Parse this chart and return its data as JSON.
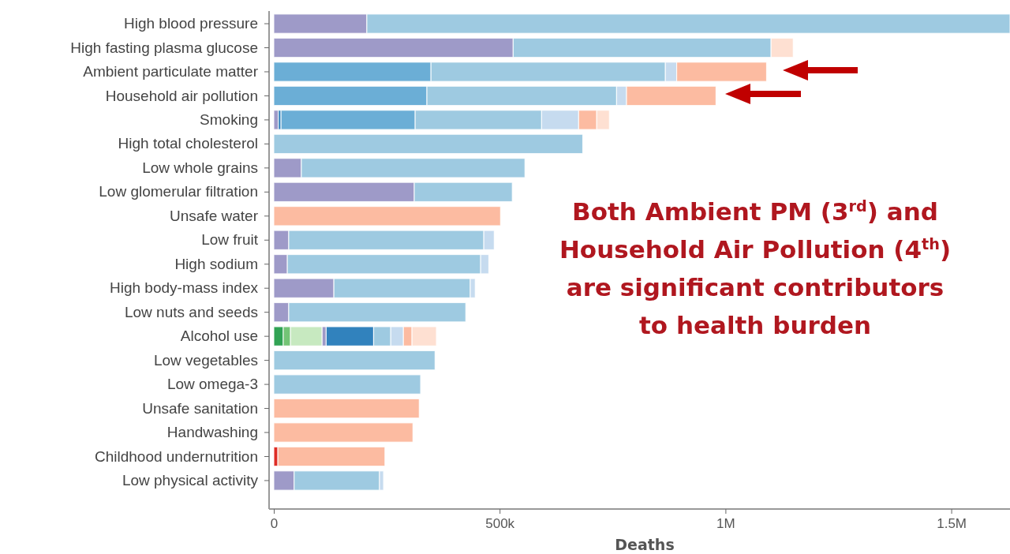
{
  "chart_data": {
    "type": "bar",
    "orientation": "horizontal",
    "stacked": true,
    "xlabel": "Deaths",
    "categories": [
      "High blood pressure",
      "High fasting plasma glucose",
      "Ambient particulate matter",
      "Household air pollution",
      "Smoking",
      "High total cholesterol",
      "Low whole grains",
      "Low glomerular filtration",
      "Unsafe water",
      "Low fruit",
      "High sodium",
      "High body-mass index",
      "Low nuts and seeds",
      "Alcohol use",
      "Low vegetables",
      "Low omega-3",
      "Unsafe sanitation",
      "Handwashing",
      "Childhood undernutrition",
      "Low physical activity"
    ],
    "xlim": [
      0,
      1630000
    ],
    "xticks": [
      {
        "value": 0,
        "label": "0"
      },
      {
        "value": 500000,
        "label": "500k"
      },
      {
        "value": 1000000,
        "label": "1M"
      },
      {
        "value": 1500000,
        "label": "1.5M"
      }
    ],
    "grid": false,
    "series": [
      {
        "color": "#31a354",
        "values": [
          0,
          0,
          0,
          0,
          0,
          0,
          0,
          0,
          0,
          0,
          0,
          0,
          0,
          21000,
          0,
          0,
          0,
          0,
          0,
          0
        ]
      },
      {
        "color": "#74c476",
        "values": [
          0,
          0,
          0,
          0,
          0,
          0,
          0,
          0,
          0,
          0,
          0,
          0,
          0,
          16000,
          0,
          0,
          0,
          0,
          0,
          0
        ]
      },
      {
        "color": "#c7e9c0",
        "values": [
          0,
          0,
          0,
          0,
          0,
          0,
          0,
          0,
          0,
          0,
          0,
          0,
          0,
          70000,
          0,
          0,
          0,
          0,
          0,
          0
        ]
      },
      {
        "color": "#9e9ac8",
        "values": [
          206000,
          530000,
          0,
          0,
          10000,
          0,
          61000,
          311000,
          0,
          33000,
          30000,
          133000,
          33000,
          9000,
          0,
          0,
          0,
          0,
          0,
          45000
        ]
      },
      {
        "color": "#3182bd",
        "values": [
          0,
          0,
          0,
          0,
          6000,
          0,
          0,
          0,
          0,
          0,
          0,
          0,
          0,
          105000,
          0,
          0,
          0,
          0,
          0,
          0
        ]
      },
      {
        "color": "#6baed6",
        "values": [
          0,
          0,
          348000,
          339000,
          297000,
          0,
          0,
          0,
          0,
          0,
          0,
          0,
          0,
          0,
          0,
          0,
          0,
          0,
          0,
          0
        ]
      },
      {
        "color": "#9ecae1",
        "values": [
          1424000,
          571000,
          519000,
          420000,
          280000,
          684000,
          495000,
          217000,
          0,
          432000,
          428000,
          302000,
          392000,
          38000,
          357000,
          325000,
          0,
          0,
          0,
          189000
        ]
      },
      {
        "color": "#c6dbef",
        "values": [
          0,
          0,
          25000,
          22000,
          82000,
          0,
          0,
          0,
          0,
          23000,
          18000,
          11000,
          0,
          28000,
          0,
          0,
          0,
          0,
          0,
          9000
        ]
      },
      {
        "color": "#de2d26",
        "values": [
          0,
          0,
          0,
          0,
          0,
          0,
          0,
          0,
          0,
          0,
          0,
          0,
          0,
          0,
          0,
          0,
          0,
          0,
          9000,
          0
        ]
      },
      {
        "color": "#fcbba1",
        "values": [
          0,
          0,
          199000,
          198000,
          40000,
          0,
          0,
          0,
          502000,
          0,
          0,
          0,
          0,
          19000,
          0,
          0,
          322000,
          308000,
          237000,
          0
        ]
      },
      {
        "color": "#fee0d2",
        "values": [
          0,
          49000,
          0,
          0,
          28000,
          0,
          0,
          0,
          0,
          0,
          0,
          0,
          0,
          54000,
          0,
          0,
          0,
          0,
          0,
          0
        ]
      }
    ],
    "annotations": [
      "Both Ambient PM (3$^{rd}$) and Household Air Pollution (4$^{th}$) are significant contributors to health burden"
    ]
  }
}
